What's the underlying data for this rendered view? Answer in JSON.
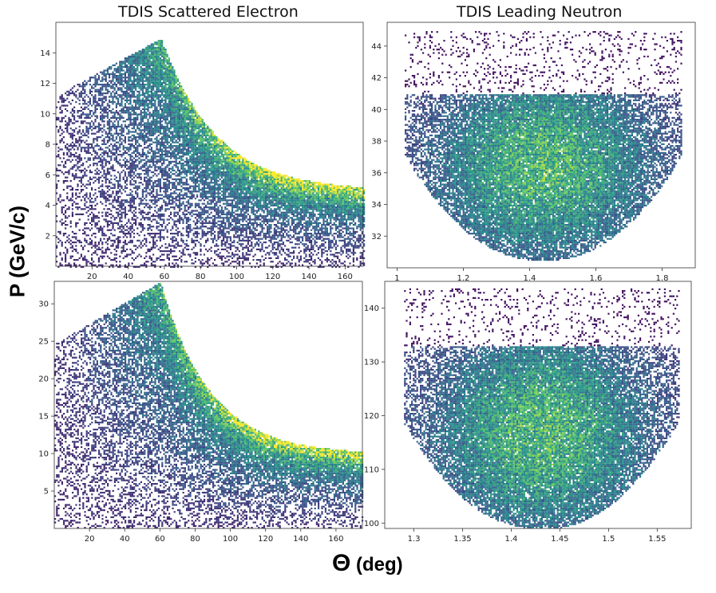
{
  "figure": {
    "ylabel": "P (GeV/c)",
    "xlabel_symbol": "Θ",
    "xlabel_unit": "(deg)",
    "colormap": [
      "#440154",
      "#3b528b",
      "#21918c",
      "#5ec962",
      "#fde725"
    ]
  },
  "chart_data": [
    {
      "type": "heatmap",
      "title": "TDIS Scattered Electron",
      "xlim": [
        0,
        170
      ],
      "ylim": [
        0,
        16
      ],
      "xticks": [
        20,
        40,
        60,
        80,
        100,
        120,
        140,
        160
      ],
      "yticks": [
        2,
        4,
        6,
        8,
        10,
        12,
        14
      ],
      "distribution": {
        "kind": "electron",
        "peak_x": 58,
        "peak_y": 15,
        "end_y": 5,
        "decay": 30
      }
    },
    {
      "type": "heatmap",
      "title": "TDIS Leading Neutron",
      "xlim": [
        0.97,
        1.9
      ],
      "ylim": [
        30,
        45.5
      ],
      "xticks": [
        1.0,
        1.2,
        1.4,
        1.6,
        1.8
      ],
      "yticks": [
        32,
        34,
        36,
        38,
        40,
        42,
        44
      ],
      "distribution": {
        "kind": "neutron",
        "cx": 1.44,
        "cy": 36.5,
        "rx": 0.4,
        "ylow": 30.5,
        "ytop": 41,
        "ymax": 45
      }
    },
    {
      "type": "heatmap",
      "title": "",
      "xlim": [
        0,
        175
      ],
      "ylim": [
        0,
        33
      ],
      "xticks": [
        20,
        40,
        60,
        80,
        100,
        120,
        140,
        160
      ],
      "yticks": [
        5,
        10,
        15,
        20,
        25,
        30
      ],
      "distribution": {
        "kind": "electron",
        "peak_x": 60,
        "peak_y": 33,
        "end_y": 10,
        "decay": 28
      }
    },
    {
      "type": "heatmap",
      "title": "",
      "xlim": [
        1.27,
        1.585
      ],
      "ylim": [
        99,
        145
      ],
      "xticks": [
        1.3,
        1.35,
        1.4,
        1.45,
        1.5,
        1.55
      ],
      "yticks": [
        100,
        110,
        120,
        130,
        140
      ],
      "distribution": {
        "kind": "neutron",
        "cx": 1.43,
        "cy": 117,
        "rx": 0.135,
        "ylow": 99,
        "ytop": 133,
        "ymax": 144
      }
    }
  ]
}
